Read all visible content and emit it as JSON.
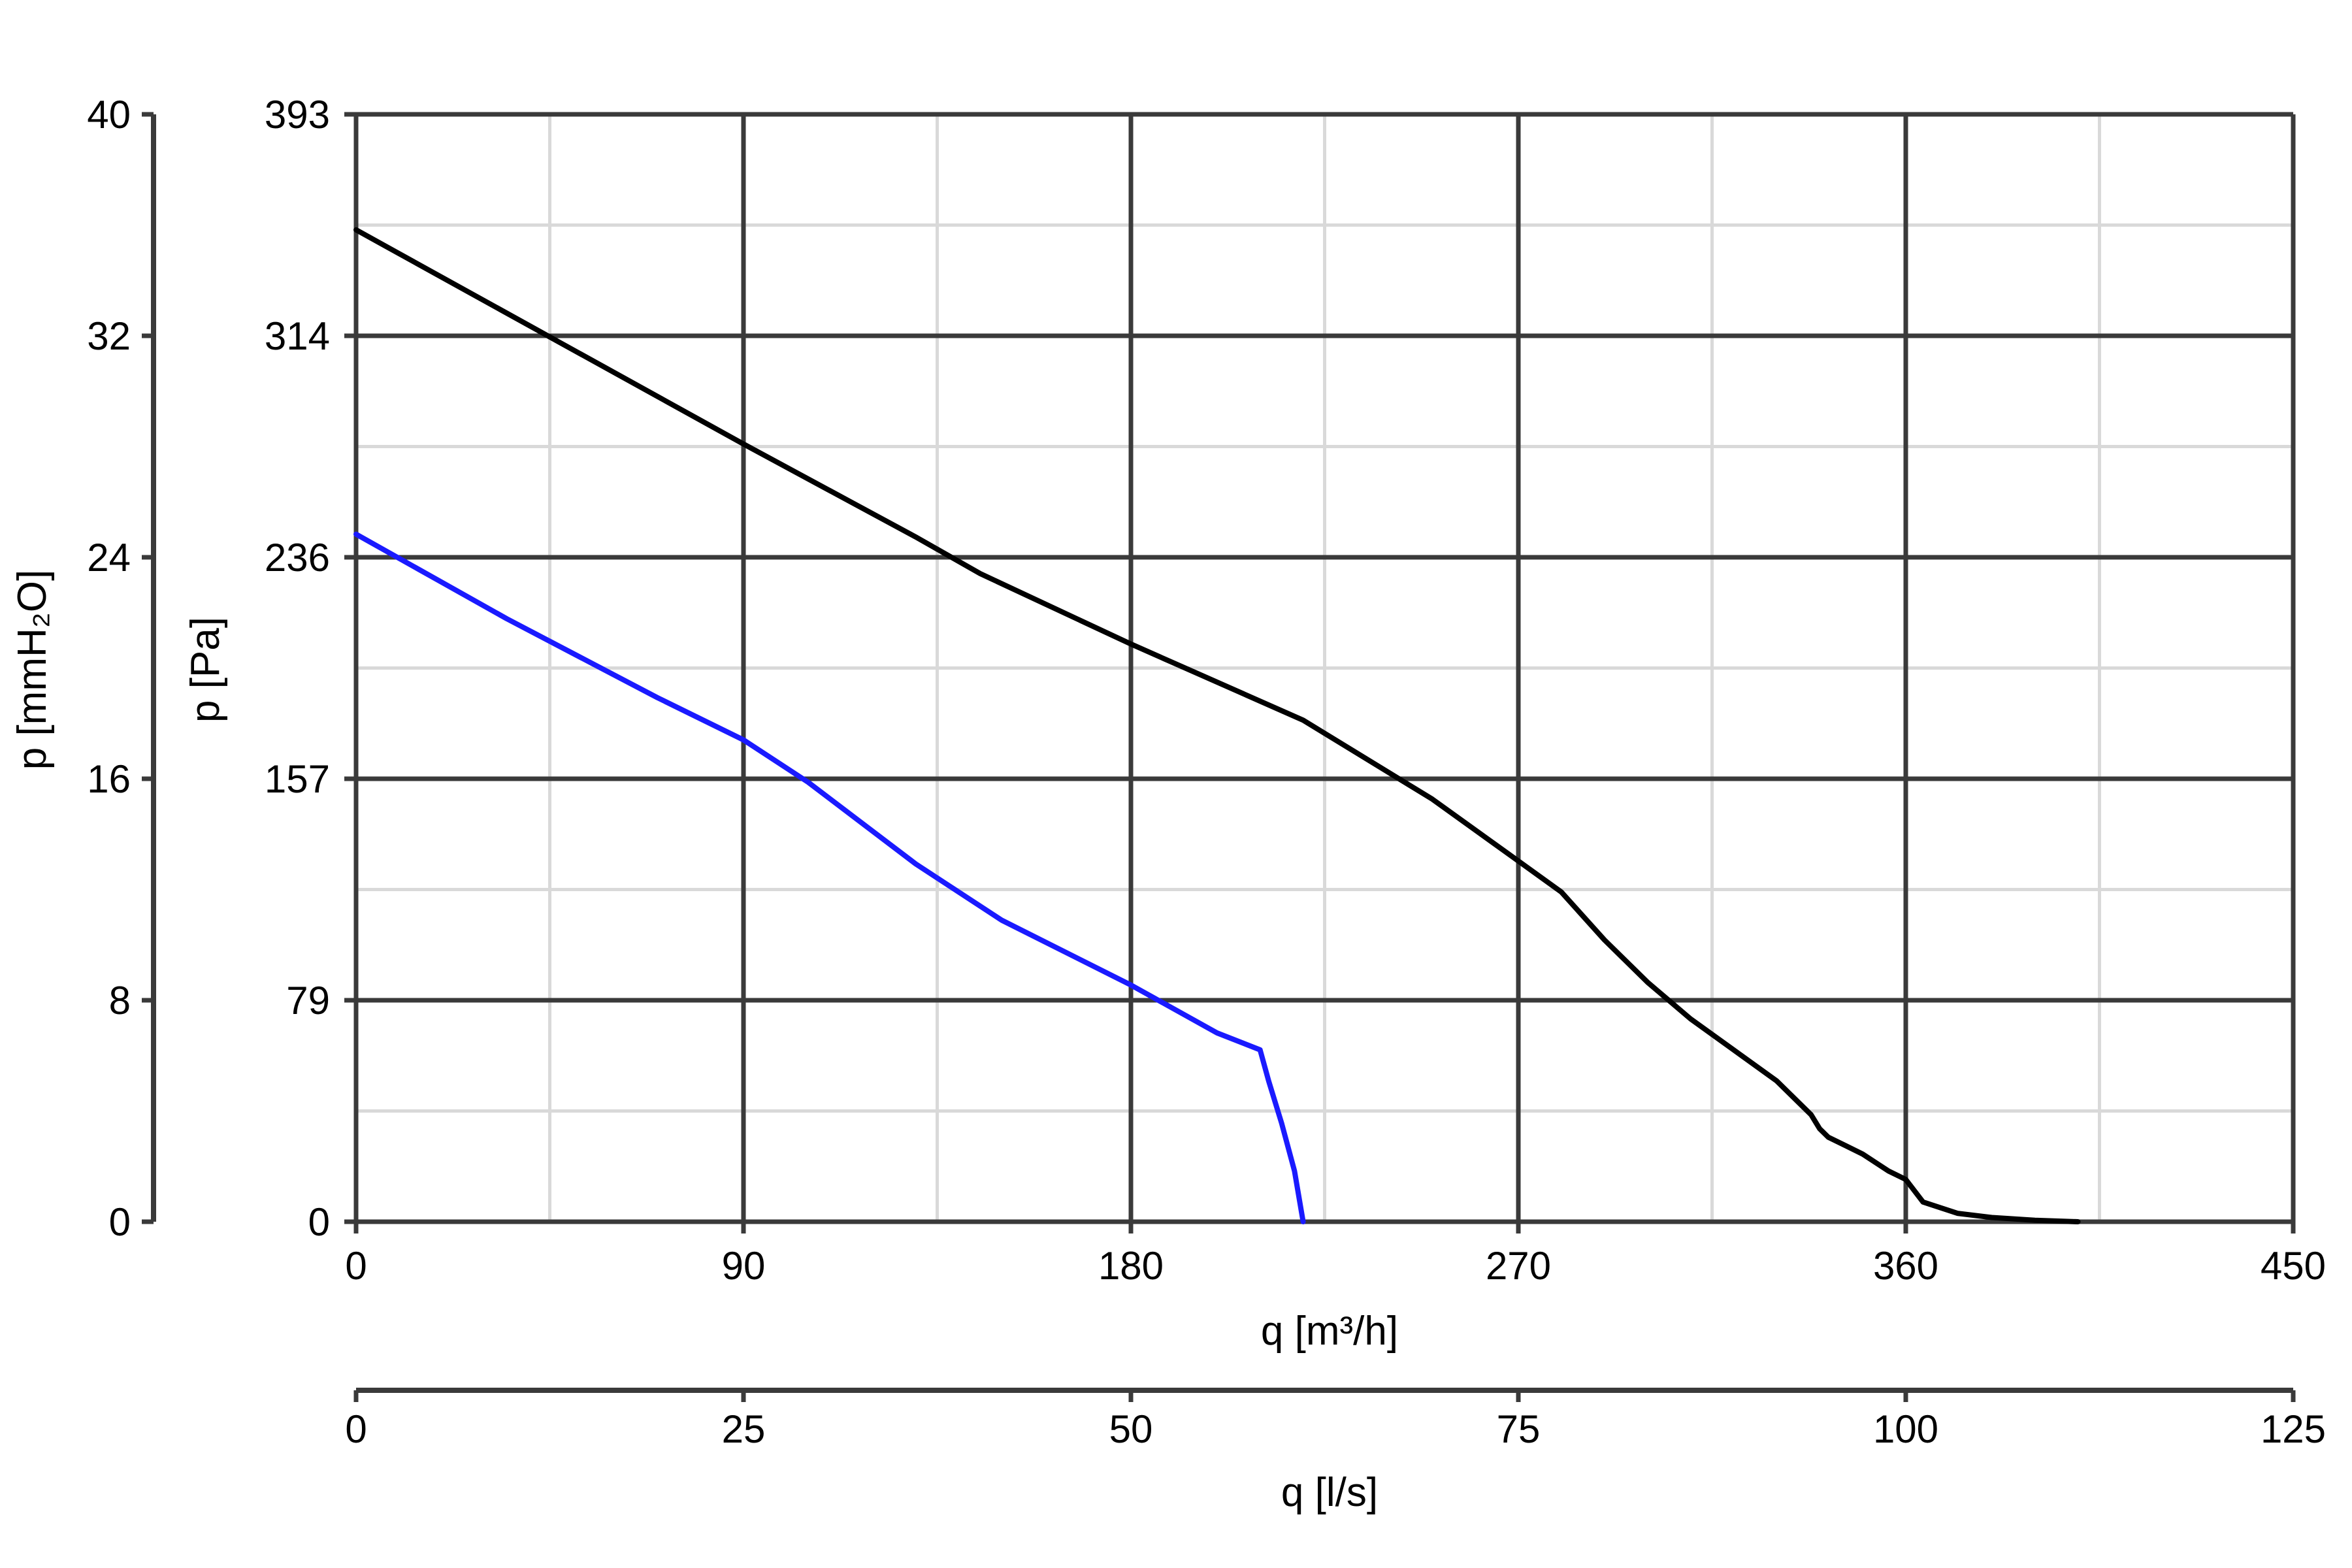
{
  "chart_data": {
    "type": "line",
    "title": "",
    "xlabel": "q [m³/h]",
    "xlabel_secondary": "q [l/s]",
    "ylabel": "p [Pa]",
    "ylabel_secondary": "p [mmH₂O]",
    "xlim": [
      0,
      450
    ],
    "ylim": [
      0,
      393
    ],
    "x_ticks": [
      "0",
      "90",
      "180",
      "270",
      "360",
      "450"
    ],
    "x_secondary_ticks": [
      "0",
      "25",
      "50",
      "75",
      "100",
      "125"
    ],
    "y_ticks": [
      "0",
      "79",
      "157",
      "236",
      "314",
      "393"
    ],
    "y_secondary_ticks": [
      "0",
      "8",
      "16",
      "24",
      "32",
      "40"
    ],
    "grid": true,
    "legend": "none",
    "series": [
      {
        "color": "#000000",
        "x": [
          0,
          45,
          90,
          130,
          145,
          180,
          220,
          250,
          270,
          280,
          290,
          300,
          310,
          320,
          330,
          338,
          340,
          342,
          346,
          350,
          356,
          360,
          364,
          368,
          372,
          380,
          390,
          400
        ],
        "y": [
          352,
          314,
          276,
          243,
          230,
          205,
          178,
          150,
          128,
          117,
          100,
          85,
          72,
          61,
          50,
          38,
          33,
          30,
          27,
          24,
          18,
          15,
          7,
          5,
          3,
          1.5,
          0.5,
          0
        ]
      },
      {
        "color": "#1a1aff",
        "x": [
          0,
          35,
          70,
          90,
          105,
          130,
          150,
          180,
          200,
          210,
          212,
          215,
          218,
          220
        ],
        "y": [
          244,
          214,
          186,
          171,
          156,
          127,
          107,
          84,
          67,
          61,
          50,
          35,
          18,
          0
        ]
      }
    ]
  }
}
